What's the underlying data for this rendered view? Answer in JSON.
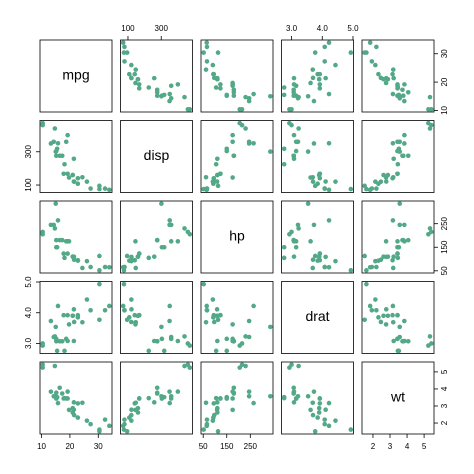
{
  "chart_data": {
    "type": "scatter-matrix",
    "color": "#52a887",
    "variables": [
      {
        "name": "mpg",
        "values": [
          21.0,
          21.0,
          22.8,
          21.4,
          18.7,
          18.1,
          14.3,
          24.4,
          22.8,
          19.2,
          17.8,
          16.4,
          17.3,
          15.2,
          10.4,
          10.4,
          14.7,
          32.4,
          30.4,
          33.9,
          21.5,
          15.5,
          15.2,
          13.3,
          19.2,
          27.3,
          26.0,
          30.4,
          15.8,
          19.7,
          15.0,
          21.4
        ],
        "lim": [
          9.46,
          34.84
        ],
        "ticks": [
          10,
          20,
          30
        ]
      },
      {
        "name": "disp",
        "values": [
          160,
          160,
          108,
          258,
          360,
          225,
          360,
          146.7,
          140.8,
          167.6,
          167.6,
          275.8,
          275.8,
          275.8,
          472,
          460,
          440,
          78.7,
          75.7,
          71.1,
          120.1,
          318,
          304,
          350,
          400,
          79,
          120.3,
          95.1,
          351,
          145,
          301,
          121
        ],
        "lim": [
          55.06,
          488.04
        ],
        "ticks": [
          100,
          300
        ]
      },
      {
        "name": "hp",
        "values": [
          110,
          110,
          93,
          110,
          175,
          105,
          245,
          62,
          95,
          123,
          123,
          180,
          180,
          180,
          205,
          215,
          230,
          66,
          52,
          65,
          97,
          150,
          150,
          245,
          175,
          66,
          91,
          113,
          264,
          175,
          335,
          109
        ],
        "lim": [
          40.68,
          346.32
        ],
        "ticks": [
          50,
          150,
          250
        ]
      },
      {
        "name": "drat",
        "values": [
          3.9,
          3.9,
          3.85,
          3.08,
          3.15,
          2.76,
          3.21,
          3.69,
          3.92,
          3.92,
          3.92,
          3.07,
          3.07,
          3.07,
          2.93,
          3.0,
          3.23,
          4.08,
          4.93,
          4.22,
          3.7,
          2.76,
          3.15,
          3.73,
          3.08,
          4.08,
          4.43,
          3.77,
          4.22,
          3.62,
          3.54,
          4.11
        ],
        "lim": [
          2.6732,
          5.0168
        ],
        "ticks": [
          {
            "value": 3,
            "label": "3.0"
          },
          {
            "value": 4,
            "label": "4.0"
          },
          {
            "value": 5,
            "label": "5.0"
          }
        ]
      },
      {
        "name": "wt",
        "values": [
          2.62,
          2.875,
          2.32,
          3.215,
          3.44,
          3.46,
          3.57,
          3.19,
          3.15,
          3.44,
          3.44,
          4.07,
          3.73,
          3.78,
          5.25,
          5.424,
          5.345,
          2.2,
          1.615,
          1.835,
          2.465,
          3.52,
          3.435,
          3.84,
          3.845,
          1.935,
          2.14,
          1.513,
          3.17,
          2.77,
          3.57,
          2.78
        ],
        "lim": [
          1.3566,
          5.5804
        ],
        "ticks": [
          2,
          3,
          4,
          5
        ]
      }
    ]
  }
}
